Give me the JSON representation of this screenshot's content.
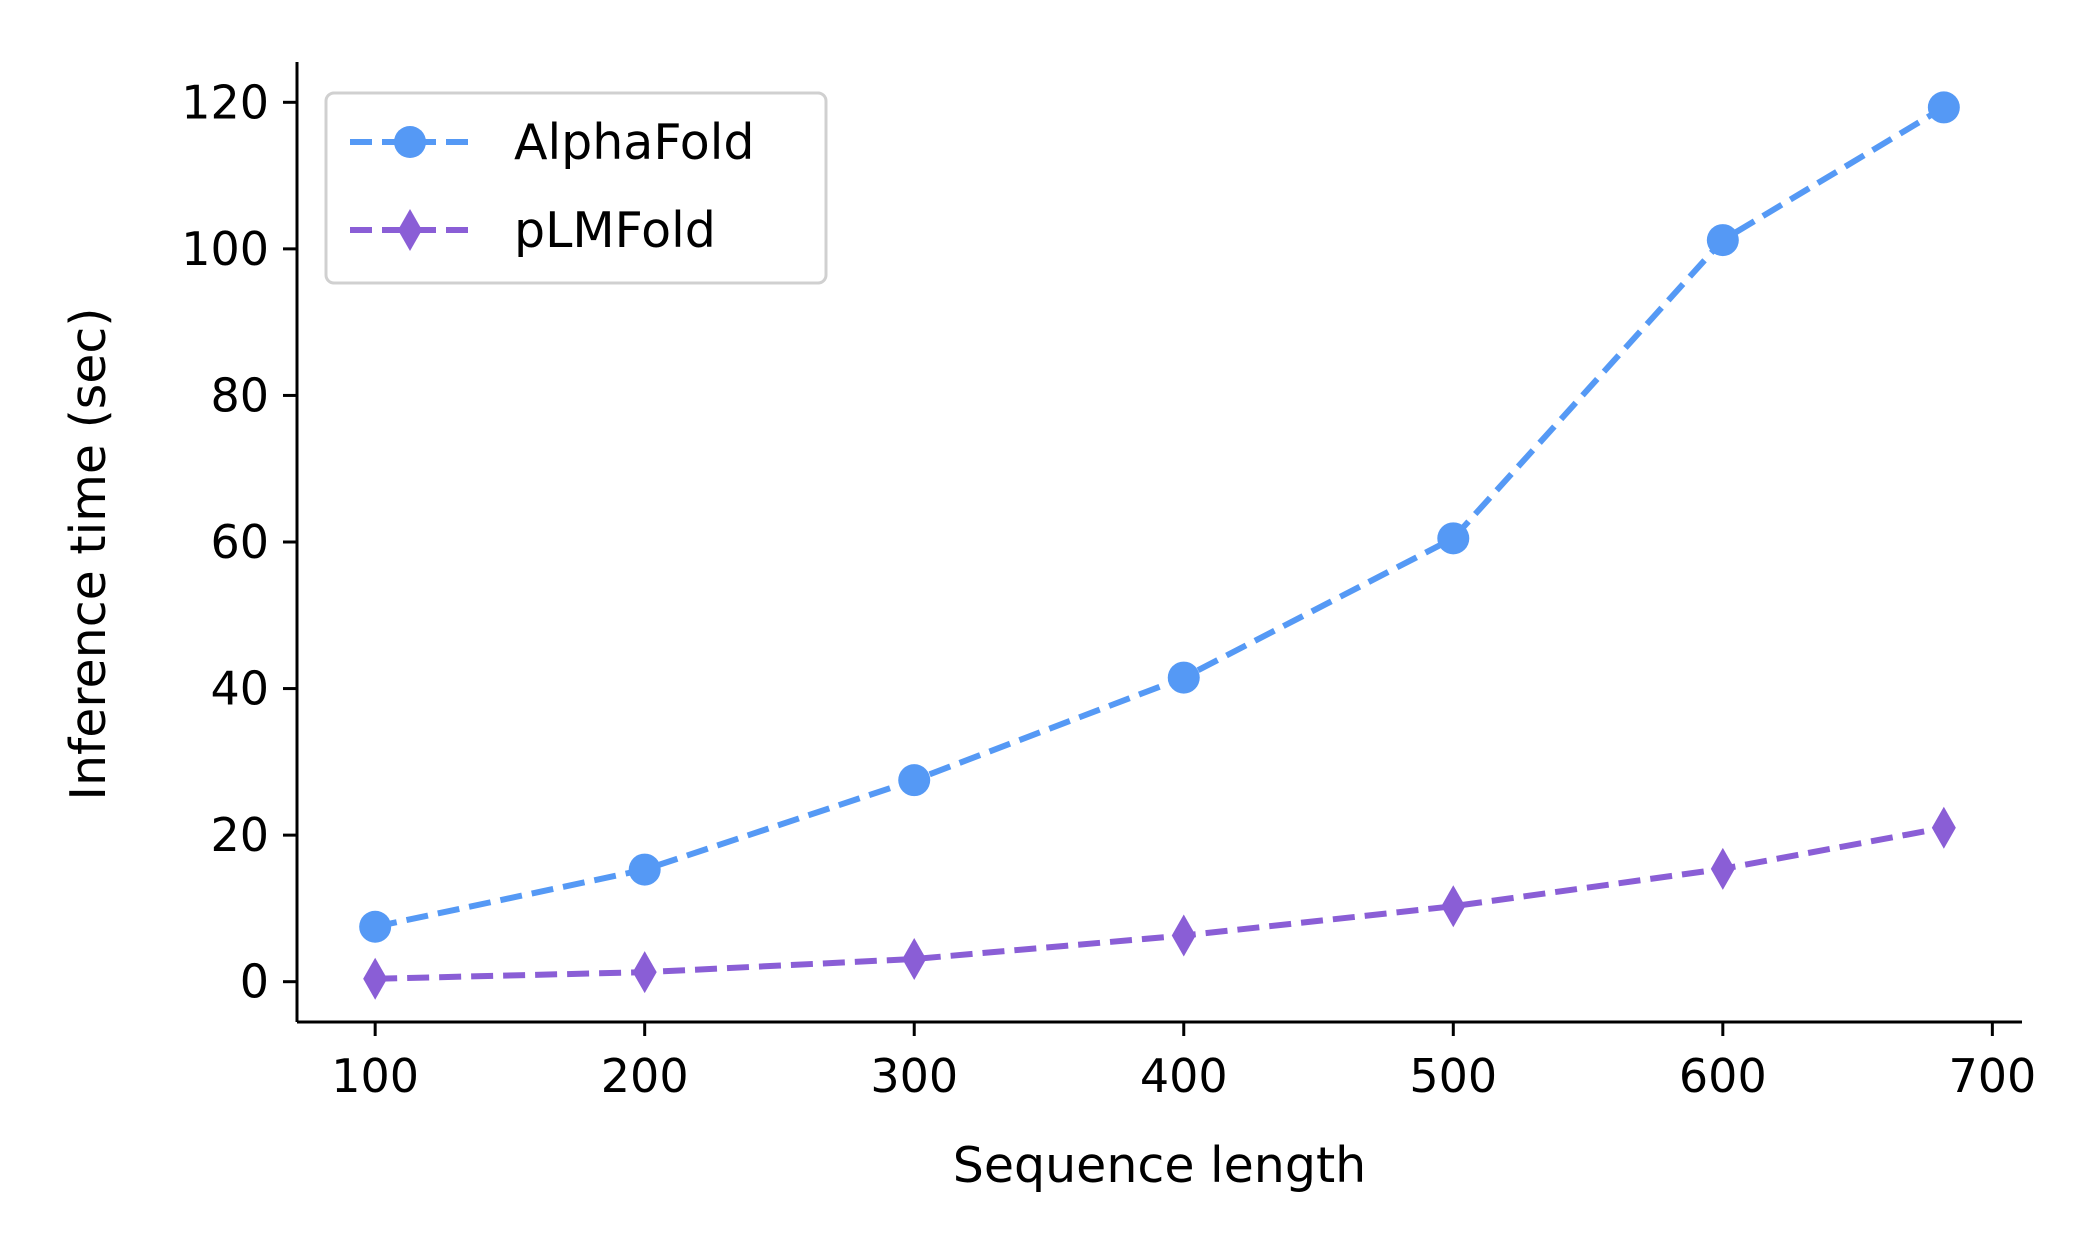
{
  "chart_data": {
    "type": "line",
    "title": "",
    "xlabel": "Sequence length",
    "ylabel": "Inference time (sec)",
    "xlim": [
      71,
      711
    ],
    "ylim": [
      -5.5,
      125.5
    ],
    "xticks": [
      100,
      200,
      300,
      400,
      500,
      600,
      700
    ],
    "yticks": [
      0,
      20,
      40,
      60,
      80,
      100,
      120
    ],
    "grid": false,
    "legend_position": "top-left",
    "series": [
      {
        "name": "AlphaFold",
        "color": "#5599f5",
        "marker": "circle",
        "line_style": "dashed",
        "x": [
          100,
          200,
          300,
          400,
          500,
          600,
          682
        ],
        "y": [
          7.5,
          15.3,
          27.5,
          41.5,
          60.5,
          101.2,
          119.3
        ]
      },
      {
        "name": "pLMFold",
        "color": "#8a5ed6",
        "marker": "thin_diamond",
        "line_style": "dashed",
        "x": [
          100,
          200,
          300,
          400,
          500,
          600,
          682
        ],
        "y": [
          0.4,
          1.3,
          3.1,
          6.3,
          10.3,
          15.4,
          21.0
        ]
      }
    ]
  }
}
